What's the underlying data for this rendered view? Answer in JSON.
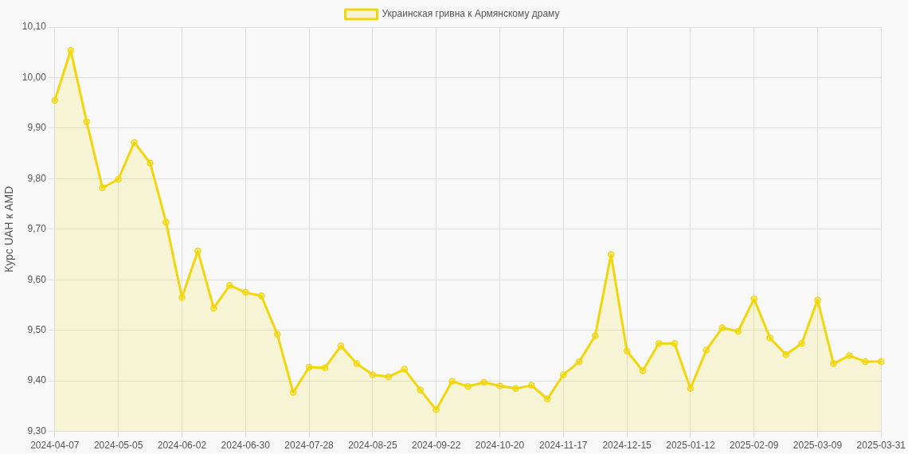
{
  "chart_data": {
    "type": "area",
    "ylabel": "Курс UAH к AMD",
    "categories": [
      "2024-04-07",
      null,
      null,
      null,
      "2024-05-05",
      null,
      null,
      null,
      "2024-06-02",
      null,
      null,
      null,
      "2024-06-30",
      null,
      null,
      null,
      "2024-07-28",
      null,
      null,
      null,
      "2024-08-25",
      null,
      null,
      null,
      "2024-09-22",
      null,
      null,
      null,
      "2024-10-20",
      null,
      null,
      null,
      "2024-11-17",
      null,
      null,
      null,
      "2024-12-15",
      null,
      null,
      null,
      "2025-01-12",
      null,
      null,
      null,
      "2025-02-09",
      null,
      null,
      null,
      "2025-03-09",
      null,
      null,
      null,
      "2025-03-31"
    ],
    "series": [
      {
        "name": "Украинская гривна к Армянскому драму",
        "color": "#f2d60c",
        "values": [
          9.955,
          10.054,
          9.913,
          9.782,
          9.799,
          9.872,
          9.831,
          9.714,
          9.565,
          9.657,
          9.544,
          9.589,
          9.575,
          9.568,
          9.492,
          9.377,
          9.427,
          9.426,
          9.469,
          9.434,
          9.412,
          9.408,
          9.423,
          9.382,
          9.343,
          9.399,
          9.389,
          9.397,
          9.39,
          9.385,
          9.391,
          9.364,
          9.412,
          9.438,
          9.489,
          9.65,
          9.459,
          9.42,
          9.474,
          9.474,
          9.385,
          9.461,
          9.505,
          9.498,
          9.562,
          9.485,
          9.452,
          9.474,
          9.56,
          9.434,
          9.45,
          9.438,
          9.438
        ]
      }
    ],
    "ylim": [
      9.3,
      10.1
    ],
    "yticks": [
      {
        "value": 9.3,
        "label": "9,30"
      },
      {
        "value": 9.4,
        "label": "9,40"
      },
      {
        "value": 9.5,
        "label": "9,50"
      },
      {
        "value": 9.6,
        "label": "9,60"
      },
      {
        "value": 9.7,
        "label": "9,70"
      },
      {
        "value": 9.8,
        "label": "9,80"
      },
      {
        "value": 9.9,
        "label": "9,90"
      },
      {
        "value": 10.0,
        "label": "10,00"
      },
      {
        "value": 10.1,
        "label": "10,10"
      }
    ],
    "grid": true,
    "legend": "top",
    "marker": "circle",
    "line_style": "solid"
  }
}
